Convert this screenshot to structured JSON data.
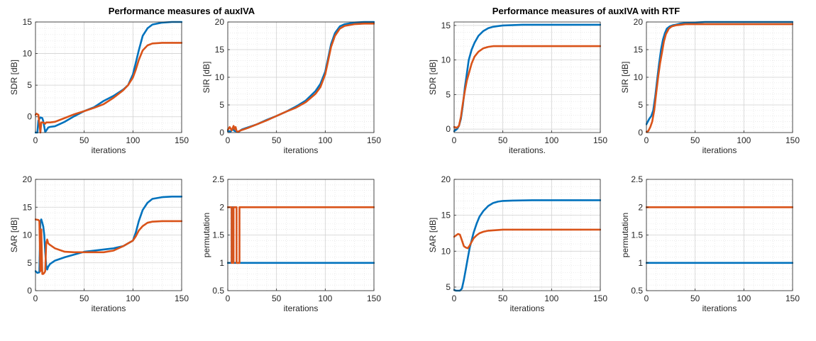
{
  "titles": [
    {
      "text": "Performance measures of auxIVA"
    },
    {
      "text": "Performance measures of auxIVA with RTF"
    }
  ],
  "colors": {
    "series1": "#0072BD",
    "series2": "#D95319",
    "grid": "#e3e3e3",
    "axis": "#262626"
  },
  "chart_data": [
    {
      "type": "line",
      "xlabel": "iterations",
      "ylabel": "SDR [dB]",
      "xlim": [
        0,
        150
      ],
      "ylim": [
        -2.5,
        15
      ],
      "xticks": [
        0,
        50,
        100,
        150
      ],
      "yticks": [
        0,
        5,
        10,
        15
      ],
      "grid": true,
      "series": [
        {
          "x": [
            0,
            2,
            3,
            5,
            7,
            8,
            10,
            11,
            13,
            15,
            20,
            30,
            40,
            50,
            60,
            70,
            80,
            90,
            95,
            100,
            103,
            106,
            110,
            115,
            120,
            130,
            140,
            150
          ],
          "y": [
            -2.5,
            -2.5,
            -0.6,
            -0.1,
            -0.2,
            -0.7,
            -2.4,
            -2.2,
            -1.7,
            -1.6,
            -1.5,
            -0.8,
            0.1,
            0.9,
            1.5,
            2.5,
            3.3,
            4.3,
            5.0,
            6.7,
            8.6,
            10.5,
            12.8,
            14.0,
            14.6,
            14.9,
            15.0,
            15.0
          ]
        },
        {
          "x": [
            0,
            1,
            3,
            5,
            6,
            8,
            10,
            11,
            13,
            15,
            20,
            30,
            40,
            50,
            60,
            70,
            80,
            90,
            95,
            100,
            103,
            106,
            110,
            115,
            120,
            130,
            140,
            150
          ],
          "y": [
            0.3,
            0.5,
            0.3,
            -2.5,
            -0.9,
            -0.9,
            -1.1,
            -0.9,
            -0.9,
            -0.9,
            -0.8,
            -0.2,
            0.4,
            0.9,
            1.4,
            2.0,
            3.0,
            4.2,
            5.0,
            6.2,
            7.5,
            9.0,
            10.5,
            11.3,
            11.6,
            11.7,
            11.7,
            11.7
          ]
        }
      ]
    },
    {
      "type": "line",
      "xlabel": "iterations",
      "ylabel": "SIR [dB]",
      "xlim": [
        0,
        150
      ],
      "ylim": [
        0,
        20
      ],
      "xticks": [
        0,
        50,
        100,
        150
      ],
      "yticks": [
        0,
        5,
        10,
        15,
        20
      ],
      "grid": true,
      "series": [
        {
          "x": [
            0,
            3,
            5,
            7,
            9,
            11,
            13,
            15,
            20,
            30,
            40,
            50,
            60,
            70,
            80,
            90,
            95,
            100,
            103,
            106,
            110,
            115,
            120,
            130,
            140,
            150
          ],
          "y": [
            0.3,
            0.2,
            0.6,
            0.3,
            0.2,
            0.1,
            0.4,
            0.6,
            0.9,
            1.5,
            2.3,
            3.0,
            3.8,
            4.7,
            5.8,
            7.5,
            8.8,
            11.0,
            13.5,
            16.0,
            18.0,
            19.2,
            19.6,
            19.9,
            20.0,
            20.0
          ]
        },
        {
          "x": [
            0,
            2,
            4,
            5,
            6,
            7,
            8,
            9,
            10,
            12,
            15,
            20,
            30,
            40,
            50,
            60,
            70,
            80,
            90,
            95,
            100,
            103,
            106,
            110,
            115,
            120,
            130,
            140,
            150
          ],
          "y": [
            0.5,
            1.0,
            0.4,
            0.8,
            1.2,
            0.6,
            1.0,
            0.3,
            0.1,
            0.3,
            0.5,
            0.8,
            1.5,
            2.2,
            3.0,
            3.8,
            4.5,
            5.5,
            7.0,
            8.2,
            10.5,
            13.0,
            15.5,
            17.5,
            18.8,
            19.3,
            19.6,
            19.7,
            19.7
          ]
        }
      ]
    },
    {
      "type": "line",
      "xlabel": "iterations",
      "ylabel": "SAR [dB]",
      "xlim": [
        0,
        150
      ],
      "ylim": [
        0,
        20
      ],
      "xticks": [
        0,
        50,
        100,
        150
      ],
      "yticks": [
        0,
        5,
        10,
        15,
        20
      ],
      "grid": true,
      "series": [
        {
          "x": [
            0,
            2,
            4,
            5,
            6,
            7,
            8,
            9,
            10,
            11,
            12,
            13,
            15,
            20,
            30,
            40,
            50,
            60,
            70,
            80,
            90,
            95,
            100,
            103,
            106,
            110,
            115,
            120,
            130,
            140,
            150
          ],
          "y": [
            3.5,
            3.2,
            3.3,
            12.5,
            12.8,
            12.2,
            11.5,
            10.0,
            7.0,
            4.5,
            3.8,
            4.3,
            4.8,
            5.4,
            6.0,
            6.5,
            7.0,
            7.2,
            7.4,
            7.6,
            8.0,
            8.5,
            9.0,
            10.5,
            12.5,
            14.5,
            15.8,
            16.5,
            16.8,
            16.9,
            16.9
          ]
        },
        {
          "x": [
            0,
            3,
            4,
            5,
            6,
            7,
            8,
            9,
            10,
            11,
            12,
            13,
            15,
            20,
            30,
            40,
            50,
            60,
            70,
            80,
            90,
            95,
            100,
            103,
            106,
            110,
            115,
            120,
            130,
            140,
            150
          ],
          "y": [
            12.8,
            12.7,
            12.5,
            3.5,
            11.0,
            3.0,
            3.0,
            3.2,
            3.5,
            8.5,
            9.2,
            8.5,
            8.2,
            7.6,
            7.0,
            6.9,
            6.9,
            6.9,
            6.9,
            7.2,
            8.0,
            8.5,
            9.0,
            9.8,
            10.8,
            11.6,
            12.2,
            12.4,
            12.5,
            12.5,
            12.5
          ]
        }
      ]
    },
    {
      "type": "line",
      "xlabel": "iterations",
      "ylabel": "permutation",
      "xlim": [
        0,
        150
      ],
      "ylim": [
        0.5,
        2.5
      ],
      "xticks": [
        0,
        50,
        100,
        150
      ],
      "yticks": [
        0.5,
        1,
        1.5,
        2,
        2.5
      ],
      "grid": true,
      "series": [
        {
          "x": [
            0,
            4,
            4,
            6,
            6,
            12,
            12,
            150
          ],
          "y": [
            1,
            1,
            2,
            2,
            1,
            1,
            1,
            1
          ]
        },
        {
          "x": [
            0,
            4,
            4,
            6,
            6,
            9,
            9,
            12,
            12,
            150
          ],
          "y": [
            2,
            2,
            1,
            1,
            2,
            2,
            1,
            1,
            2,
            2
          ]
        }
      ]
    },
    {
      "type": "line",
      "xlabel": "iterations.",
      "ylabel": "SDR [dB]",
      "xlim": [
        0,
        150
      ],
      "ylim": [
        -0.5,
        15.5
      ],
      "xticks": [
        0,
        50,
        100,
        150
      ],
      "yticks": [
        0,
        5,
        10,
        15
      ],
      "grid": true,
      "series": [
        {
          "x": [
            0,
            3,
            5,
            7,
            9,
            11,
            13,
            15,
            18,
            21,
            25,
            30,
            35,
            40,
            45,
            50,
            60,
            70,
            80,
            100,
            120,
            150
          ],
          "y": [
            -0.3,
            0.0,
            0.5,
            1.5,
            3.5,
            6.0,
            8.0,
            10.0,
            11.5,
            12.5,
            13.5,
            14.2,
            14.6,
            14.8,
            14.9,
            15.0,
            15.05,
            15.1,
            15.1,
            15.1,
            15.1,
            15.1
          ]
        },
        {
          "x": [
            0,
            3,
            5,
            7,
            9,
            11,
            13,
            15,
            18,
            21,
            25,
            30,
            35,
            40,
            50,
            60,
            80,
            100,
            150
          ],
          "y": [
            0.3,
            0.2,
            0.5,
            1.8,
            3.8,
            5.5,
            7.0,
            8.0,
            9.5,
            10.5,
            11.2,
            11.7,
            11.9,
            12.0,
            12.0,
            12.0,
            12.0,
            12.0,
            12.0
          ]
        }
      ]
    },
    {
      "type": "line",
      "xlabel": "iterations",
      "ylabel": "SIR [dB]",
      "xlim": [
        0,
        150
      ],
      "ylim": [
        0,
        20
      ],
      "xticks": [
        0,
        50,
        100,
        150
      ],
      "yticks": [
        0,
        5,
        10,
        15,
        20
      ],
      "grid": true,
      "series": [
        {
          "x": [
            0,
            3,
            5,
            7,
            9,
            11,
            13,
            15,
            17,
            19,
            21,
            24,
            27,
            30,
            35,
            40,
            50,
            60,
            80,
            100,
            150
          ],
          "y": [
            1.5,
            2.5,
            3.0,
            4.0,
            6.5,
            9.5,
            12.5,
            15.0,
            16.8,
            18.0,
            18.8,
            19.2,
            19.4,
            19.5,
            19.7,
            19.8,
            19.9,
            20.0,
            20.0,
            20.0,
            20.0
          ]
        },
        {
          "x": [
            0,
            2,
            4,
            6,
            8,
            10,
            12,
            14,
            16,
            18,
            20,
            23,
            26,
            30,
            35,
            40,
            50,
            60,
            80,
            100,
            150
          ],
          "y": [
            0.1,
            0.3,
            1.0,
            2.0,
            4.0,
            7.0,
            10.0,
            12.5,
            14.5,
            16.5,
            17.8,
            18.8,
            19.2,
            19.4,
            19.5,
            19.6,
            19.6,
            19.6,
            19.6,
            19.6,
            19.6
          ]
        }
      ]
    },
    {
      "type": "line",
      "xlabel": "iterations",
      "ylabel": "SAR [dB]",
      "xlim": [
        0,
        150
      ],
      "ylim": [
        4.5,
        20
      ],
      "xticks": [
        0,
        50,
        100,
        150
      ],
      "yticks": [
        5,
        10,
        15,
        20
      ],
      "grid": true,
      "series": [
        {
          "x": [
            0,
            2,
            4,
            6,
            8,
            10,
            12,
            14,
            16,
            18,
            20,
            23,
            26,
            30,
            35,
            40,
            45,
            50,
            60,
            80,
            100,
            150
          ],
          "y": [
            4.6,
            4.5,
            4.5,
            4.5,
            4.8,
            6.0,
            7.5,
            9.0,
            10.5,
            11.5,
            12.6,
            13.8,
            14.8,
            15.6,
            16.3,
            16.7,
            16.9,
            17.0,
            17.05,
            17.1,
            17.1,
            17.1
          ]
        },
        {
          "x": [
            0,
            2,
            4,
            6,
            8,
            10,
            12,
            14,
            16,
            18,
            20,
            23,
            26,
            30,
            35,
            40,
            50,
            60,
            80,
            100,
            150
          ],
          "y": [
            12.0,
            12.2,
            12.4,
            12.3,
            11.5,
            10.7,
            10.5,
            10.4,
            10.8,
            11.3,
            11.8,
            12.2,
            12.5,
            12.7,
            12.85,
            12.9,
            13.0,
            13.0,
            13.0,
            13.0,
            13.0
          ]
        }
      ]
    },
    {
      "type": "line",
      "xlabel": "iterations",
      "ylabel": "permutation",
      "xlim": [
        0,
        150
      ],
      "ylim": [
        0.5,
        2.5
      ],
      "xticks": [
        0,
        50,
        100,
        150
      ],
      "yticks": [
        0.5,
        1,
        1.5,
        2,
        2.5
      ],
      "grid": true,
      "series": [
        {
          "x": [
            0,
            150
          ],
          "y": [
            1,
            1
          ]
        },
        {
          "x": [
            0,
            150
          ],
          "y": [
            2,
            2
          ]
        }
      ]
    }
  ]
}
